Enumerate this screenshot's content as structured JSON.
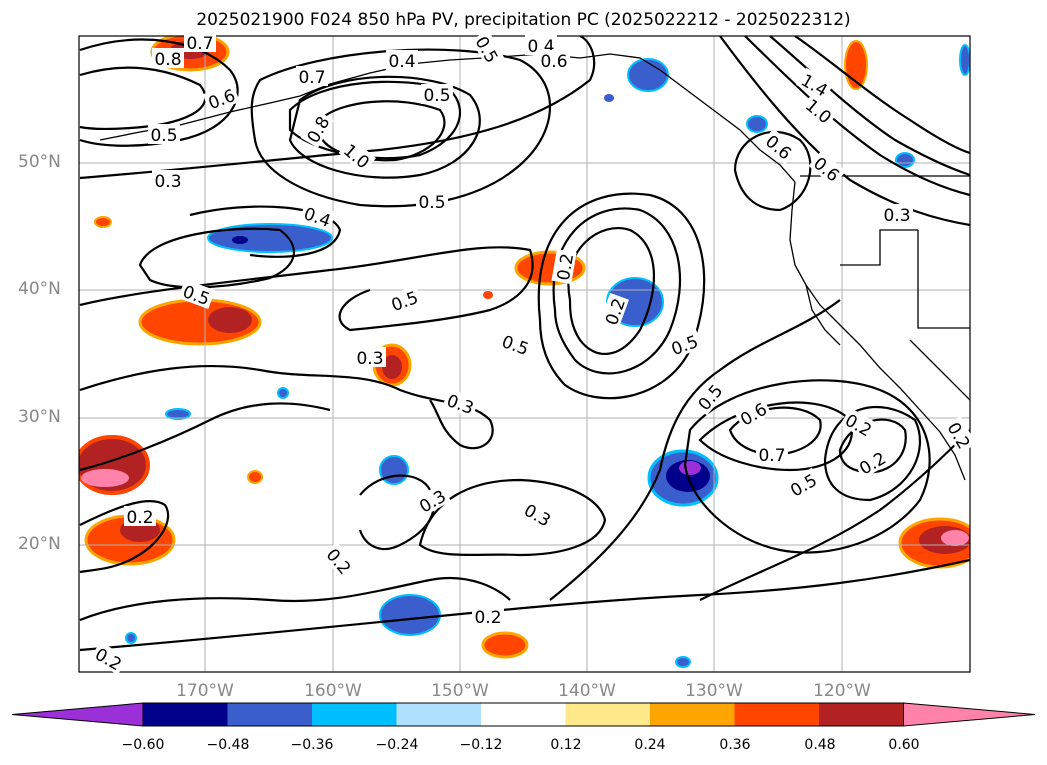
{
  "title": "2025021900 F024 850 hPa PV, precipitation PC (2025022212 - 2025022312)",
  "lon_labels": [
    "170°W",
    "160°W",
    "150°W",
    "140°W",
    "130°W",
    "120°W"
  ],
  "lat_labels": [
    "50°N",
    "40°N",
    "30°N",
    "20°N"
  ],
  "colorbar": {
    "colors": [
      "#9b30d9",
      "#00008b",
      "#3a5fcd",
      "#00bfff",
      "#b0e2ff",
      "#ffffff",
      "#ffe98a",
      "#ffa500",
      "#ff4500",
      "#b22222",
      "#ff82ab"
    ],
    "tick_labels": [
      "−0.60",
      "−0.48",
      "−0.36",
      "−0.24",
      "−0.12",
      "0.12",
      "0.24",
      "0.36",
      "0.48",
      "0.60"
    ]
  },
  "contour_labels": [
    "0.8",
    "0.7",
    "0.6",
    "0.5",
    "0.4",
    "0.6",
    "0.7",
    "0.5",
    "1.4",
    "1.0",
    "0.5",
    "0.8",
    "0.4",
    "1.0",
    "0.6",
    "0.6",
    "0.3",
    "0.5",
    "0.3",
    "0.4",
    "0.5",
    "0.5",
    "0.2",
    "0.3",
    "0.5",
    "0.5",
    "0.2",
    "0.5",
    "0.3",
    "0.6",
    "0.2",
    "0.7",
    "0.2",
    "0.5",
    "0.3",
    "0.3",
    "0.2",
    "0.2",
    "0.2",
    "0.2",
    "0.2"
  ]
}
